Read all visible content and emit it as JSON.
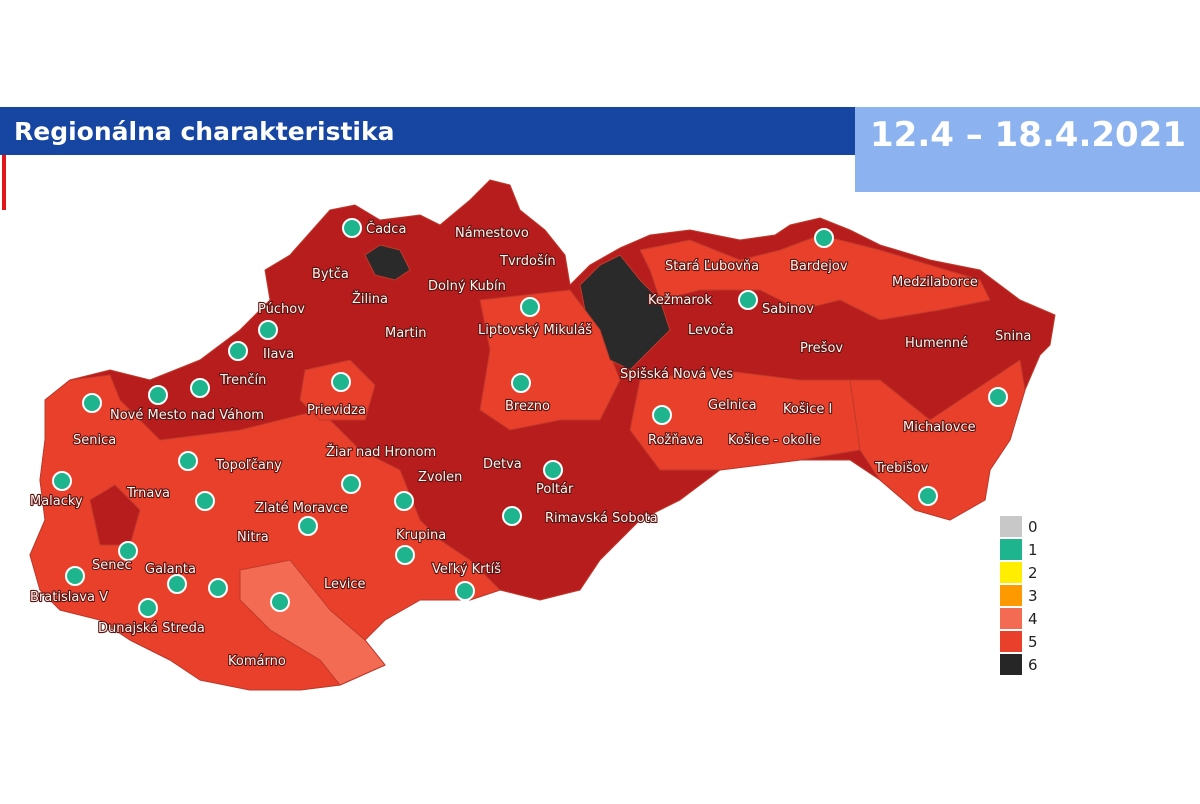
{
  "header": {
    "title": "Regionálna charakteristika",
    "date": "12.4 – 18.4.2021"
  },
  "districts": [
    {
      "label": "Čadca"
    },
    {
      "label": "Námestovo"
    },
    {
      "label": "Tvrdošín"
    },
    {
      "label": "Bytča"
    },
    {
      "label": "Dolný Kubín"
    },
    {
      "label": "Žilina"
    },
    {
      "label": "Púchov"
    },
    {
      "label": "Martin"
    },
    {
      "label": "Liptovský Mikuláš"
    },
    {
      "label": "Ilava"
    },
    {
      "label": "Trenčín"
    },
    {
      "label": "Prievidza"
    },
    {
      "label": "Nové Mesto nad Váhom"
    },
    {
      "label": "Senica"
    },
    {
      "label": "Brezno"
    },
    {
      "label": "Žiar nad Hronom"
    },
    {
      "label": "Topoľčany"
    },
    {
      "label": "Zvolen"
    },
    {
      "label": "Detva"
    },
    {
      "label": "Poltár"
    },
    {
      "label": "Malacky"
    },
    {
      "label": "Trnava"
    },
    {
      "label": "Zlaté Moravce"
    },
    {
      "label": "Nitra"
    },
    {
      "label": "Krupina"
    },
    {
      "label": "Rimavská Sobota"
    },
    {
      "label": "Senec"
    },
    {
      "label": "Galanta"
    },
    {
      "label": "Levice"
    },
    {
      "label": "Veľký Krtíš"
    },
    {
      "label": "Bratislava V"
    },
    {
      "label": "Dunajská Streda"
    },
    {
      "label": "Komárno"
    },
    {
      "label": "Stará Ľubovňa"
    },
    {
      "label": "Bardejov"
    },
    {
      "label": "Medzilaborce"
    },
    {
      "label": "Kežmarok"
    },
    {
      "label": "Sabinov"
    },
    {
      "label": "Levoča"
    },
    {
      "label": "Prešov"
    },
    {
      "label": "Humenné"
    },
    {
      "label": "Snina"
    },
    {
      "label": "Spišská Nová Ves"
    },
    {
      "label": "Gelnica"
    },
    {
      "label": "Košice I"
    },
    {
      "label": "Rožňava"
    },
    {
      "label": "Košice - okolie"
    },
    {
      "label": "Michalovce"
    },
    {
      "label": "Trebišov"
    }
  ],
  "legend": [
    {
      "label": "0",
      "color": "#c8c8c8"
    },
    {
      "label": "1",
      "color": "#1eb48e"
    },
    {
      "label": "2",
      "color": "#ffee00"
    },
    {
      "label": "3",
      "color": "#ff9900"
    },
    {
      "label": "4",
      "color": "#f26b52"
    },
    {
      "label": "5",
      "color": "#e8402a"
    },
    {
      "label": "6",
      "color": "#262626"
    }
  ]
}
